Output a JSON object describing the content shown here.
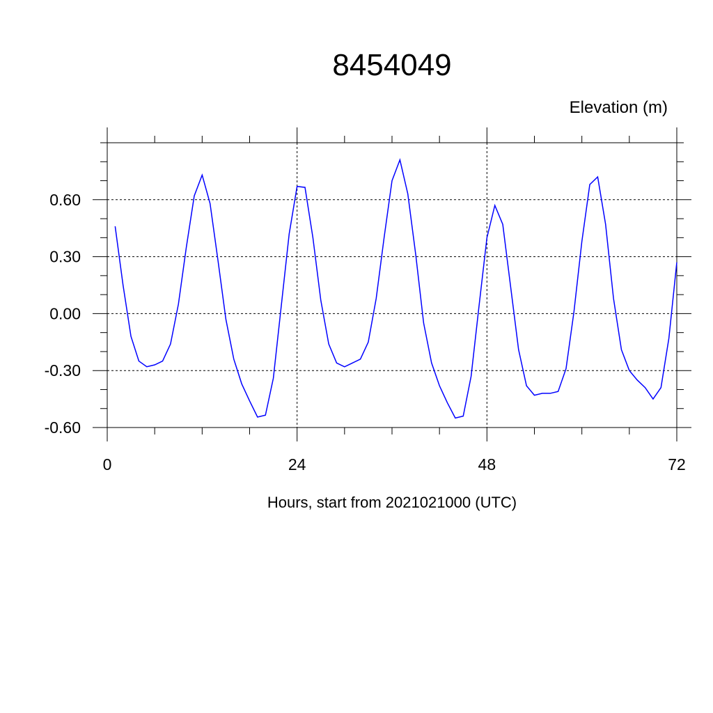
{
  "chart_data": {
    "type": "line",
    "title": "8454049",
    "y_label": "Elevation (m)",
    "x_label": "Hours, start from 2021021000 (UTC)",
    "x": [
      1,
      2,
      3,
      4,
      5,
      6,
      7,
      8,
      9,
      10,
      11,
      12,
      13,
      14,
      15,
      16,
      17,
      18,
      19,
      20,
      21,
      22,
      23,
      24,
      25,
      26,
      27,
      28,
      29,
      30,
      31,
      32,
      33,
      34,
      35,
      36,
      37,
      38,
      39,
      40,
      41,
      42,
      43,
      44,
      45,
      46,
      47,
      48,
      49,
      50,
      51,
      52,
      53,
      54,
      55,
      56,
      57,
      58,
      59,
      60,
      61,
      62,
      63,
      64,
      65,
      66,
      67,
      68,
      69,
      70,
      71,
      72
    ],
    "series": [
      {
        "color": "#0000ff",
        "values": [
          0.46,
          0.15,
          -0.12,
          -0.25,
          -0.28,
          -0.27,
          -0.25,
          -0.16,
          0.05,
          0.35,
          0.62,
          0.73,
          0.58,
          0.28,
          -0.03,
          -0.24,
          -0.37,
          -0.46,
          -0.545,
          -0.535,
          -0.34,
          0.04,
          0.42,
          0.67,
          0.665,
          0.4,
          0.07,
          -0.16,
          -0.26,
          -0.28,
          -0.26,
          -0.24,
          -0.15,
          0.08,
          0.4,
          0.7,
          0.81,
          0.63,
          0.31,
          -0.05,
          -0.26,
          -0.38,
          -0.47,
          -0.55,
          -0.54,
          -0.33,
          0.04,
          0.4,
          0.57,
          0.47,
          0.14,
          -0.19,
          -0.38,
          -0.43,
          -0.42,
          -0.42,
          -0.41,
          -0.29,
          0.01,
          0.38,
          0.68,
          0.72,
          0.47,
          0.08,
          -0.19,
          -0.3,
          -0.35,
          -0.39,
          -0.45,
          -0.39,
          -0.13,
          0.27
        ]
      }
    ],
    "xlim": [
      0,
      72
    ],
    "xticks": [
      0,
      24,
      48,
      72
    ],
    "xminorticks": [
      6,
      12,
      18,
      30,
      36,
      42,
      54,
      60,
      66
    ],
    "ylim": [
      -0.6,
      0.9
    ],
    "yticks": [
      {
        "value": -0.6,
        "label": "-0.60"
      },
      {
        "value": -0.3,
        "label": "-0.30"
      },
      {
        "value": 0,
        "label": "0.00"
      },
      {
        "value": 0.3,
        "label": "0.30"
      },
      {
        "value": 0.6,
        "label": "0.60"
      }
    ],
    "yminorticks": [
      -0.5,
      -0.4,
      -0.2,
      -0.1,
      0.1,
      0.2,
      0.4,
      0.5,
      0.7,
      0.8,
      0.9
    ],
    "grid": true
  }
}
